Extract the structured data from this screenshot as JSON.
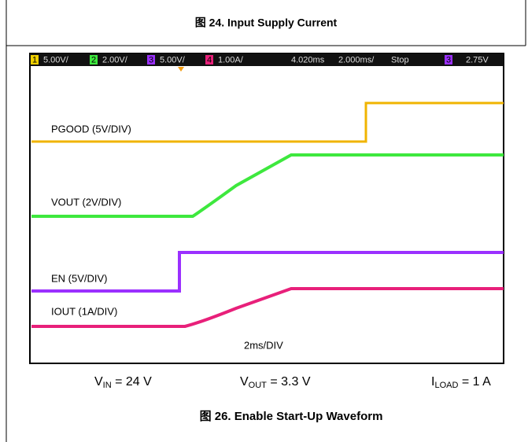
{
  "header": {
    "title": "图 24. Input Supply Current"
  },
  "scope": {
    "status": [
      "1",
      "5.00V/",
      "2",
      "2.00V/",
      "3",
      "5.00V/",
      "4",
      "1.00A/",
      "4.020ms",
      "2.000ms/",
      "Stop",
      "3",
      "2.75V"
    ],
    "traces": [
      "PGOOD (5V/DIV)",
      "VOUT (2V/DIV)",
      "EN (5V/DIV)",
      "IOUT (1A/DIV)"
    ],
    "timebase": "2ms/DIV"
  },
  "conditions": [
    {
      "symbol": "V",
      "sub": "IN",
      "text": " = 24 V"
    },
    {
      "symbol": "V",
      "sub": "OUT",
      "text": " = 3.3 V"
    },
    {
      "symbol": "I",
      "sub": "LOAD",
      "text": " = 1 A"
    }
  ],
  "caption": "图 26. Enable Start-Up Waveform"
}
